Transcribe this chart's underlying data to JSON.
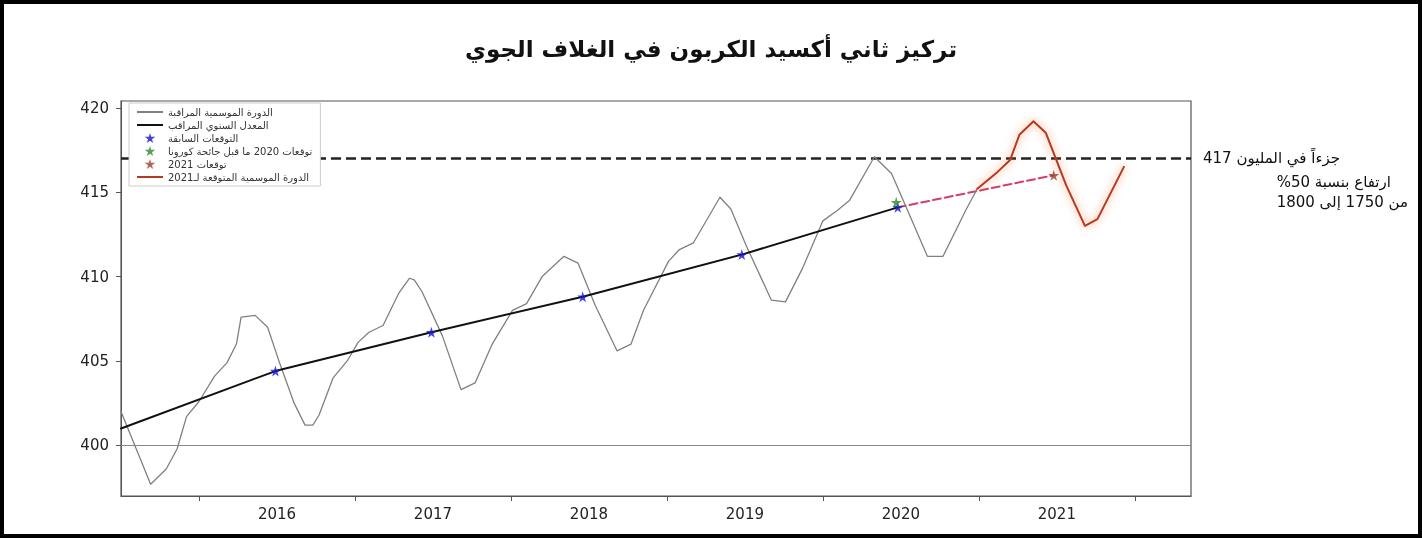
{
  "chart_data": {
    "type": "line",
    "title": "تركيز ثاني أكسيد الكربون في الغلاف الجوي",
    "xlim": [
      2015.0,
      2021.86
    ],
    "xticks": [
      {
        "value": 2015.5,
        "label": null
      },
      2016,
      {
        "value": 2016.5,
        "label": null
      },
      2017,
      {
        "value": 2017.5,
        "label": null
      },
      2018,
      {
        "value": 2018.5,
        "label": null
      },
      2019,
      {
        "value": 2019.5,
        "label": null
      },
      2020,
      {
        "value": 2020.5,
        "label": null
      },
      2021,
      {
        "value": 2021.5,
        "label": null
      }
    ],
    "ylim": [
      397,
      420.4
    ],
    "yticks": [
      400,
      405,
      410,
      415,
      420
    ],
    "grid": false,
    "legend": "top left",
    "series": [
      {
        "name": "الدورة الموسمية المراقبة",
        "color": "#808080",
        "marker": "none",
        "line_style": "solid",
        "x": [
          2015.0,
          2015.19,
          2015.29,
          2015.36,
          2015.42,
          2015.5,
          2015.6,
          2015.68,
          2015.74,
          2015.77,
          2015.86,
          2015.94,
          2016.02,
          2016.11,
          2016.18,
          2016.23,
          2016.27,
          2016.36,
          2016.45,
          2016.52,
          2016.59,
          2016.68,
          2016.78,
          2016.85,
          2016.88,
          2016.93,
          2017.06,
          2017.18,
          2017.27,
          2017.38,
          2017.51,
          2017.6,
          2017.7,
          2017.84,
          2017.93,
          2018.04,
          2018.18,
          2018.27,
          2018.35,
          2018.51,
          2018.58,
          2018.67,
          2018.84,
          2018.91,
          2019.01,
          2019.17,
          2019.26,
          2019.37,
          2019.5,
          2019.59,
          2019.67,
          2019.83,
          2019.94,
          2020.03,
          2020.17,
          2020.27,
          2020.42,
          2020.49
        ],
        "values": [
          402.0,
          397.7,
          398.6,
          399.8,
          401.7,
          402.6,
          404.1,
          404.9,
          406.0,
          407.6,
          407.7,
          407.0,
          404.8,
          402.5,
          401.2,
          401.2,
          401.8,
          404.0,
          405.0,
          406.1,
          406.7,
          407.1,
          409.0,
          409.9,
          409.8,
          409.1,
          406.5,
          403.3,
          403.7,
          406.0,
          408.0,
          408.4,
          410.0,
          411.2,
          410.8,
          408.3,
          405.6,
          406.0,
          408.0,
          410.9,
          411.6,
          412.0,
          414.7,
          414.0,
          411.8,
          408.6,
          408.5,
          410.5,
          413.3,
          413.9,
          414.5,
          417.1,
          416.1,
          414.2,
          411.2,
          411.2,
          414.0,
          415.2
        ]
      },
      {
        "name": "المعدل السنوي المراقب",
        "color": "#111111",
        "marker": "none",
        "line_style": "solid",
        "x": [
          2015.0,
          2015.99,
          2016.99,
          2017.96,
          2018.98,
          2019.98
        ],
        "values": [
          401.0,
          404.4,
          406.7,
          408.8,
          411.3,
          414.1
        ]
      },
      {
        "name": "التوقعات السابقة",
        "type": "scatter",
        "color": "#1515d0",
        "marker": "star",
        "x": [
          2015.99,
          2016.99,
          2017.96,
          2018.98,
          2019.98
        ],
        "values": [
          404.4,
          406.7,
          408.8,
          411.3,
          414.1
        ]
      },
      {
        "name": "توقعات 2020 ما قبل جائحة كورونا",
        "type": "scatter",
        "color": "#2a8a2a",
        "marker": "star",
        "x": [
          2019.97
        ],
        "values": [
          414.4
        ]
      },
      {
        "name": "توقعات 2021",
        "type": "scatter",
        "color": "#a0402a",
        "marker": "star",
        "x": [
          2020.98
        ],
        "values": [
          416.0
        ]
      },
      {
        "name": "الدورة الموسمية المتوقعة لـ2021",
        "color": "#b33a24",
        "marker": "none",
        "line_style": "solid",
        "x": [
          2020.49,
          2020.62,
          2020.7,
          2020.76,
          2020.85,
          2020.93,
          2021.06,
          2021.18,
          2021.26,
          2021.43
        ],
        "values": [
          415.2,
          416.2,
          416.9,
          418.4,
          419.2,
          418.5,
          415.4,
          413.0,
          413.4,
          416.5
        ]
      },
      {
        "color": "#d0406a",
        "marker": "none",
        "line_style": "dashed",
        "x": [
          2019.98,
          2020.98
        ],
        "values": [
          414.1,
          416.0
        ]
      }
    ],
    "ref_lines": [
      {
        "axis": "y",
        "value": 417,
        "label": "417 جزءاً في المليون",
        "color": "#222222",
        "line_style": "dashed"
      },
      {
        "axis": "y",
        "value": 400,
        "color": "#888888",
        "line_style": "solid"
      }
    ],
    "annotations": [
      "ارتفاع بنسبة 50%\nمن 1750 إلى 1800"
    ]
  }
}
